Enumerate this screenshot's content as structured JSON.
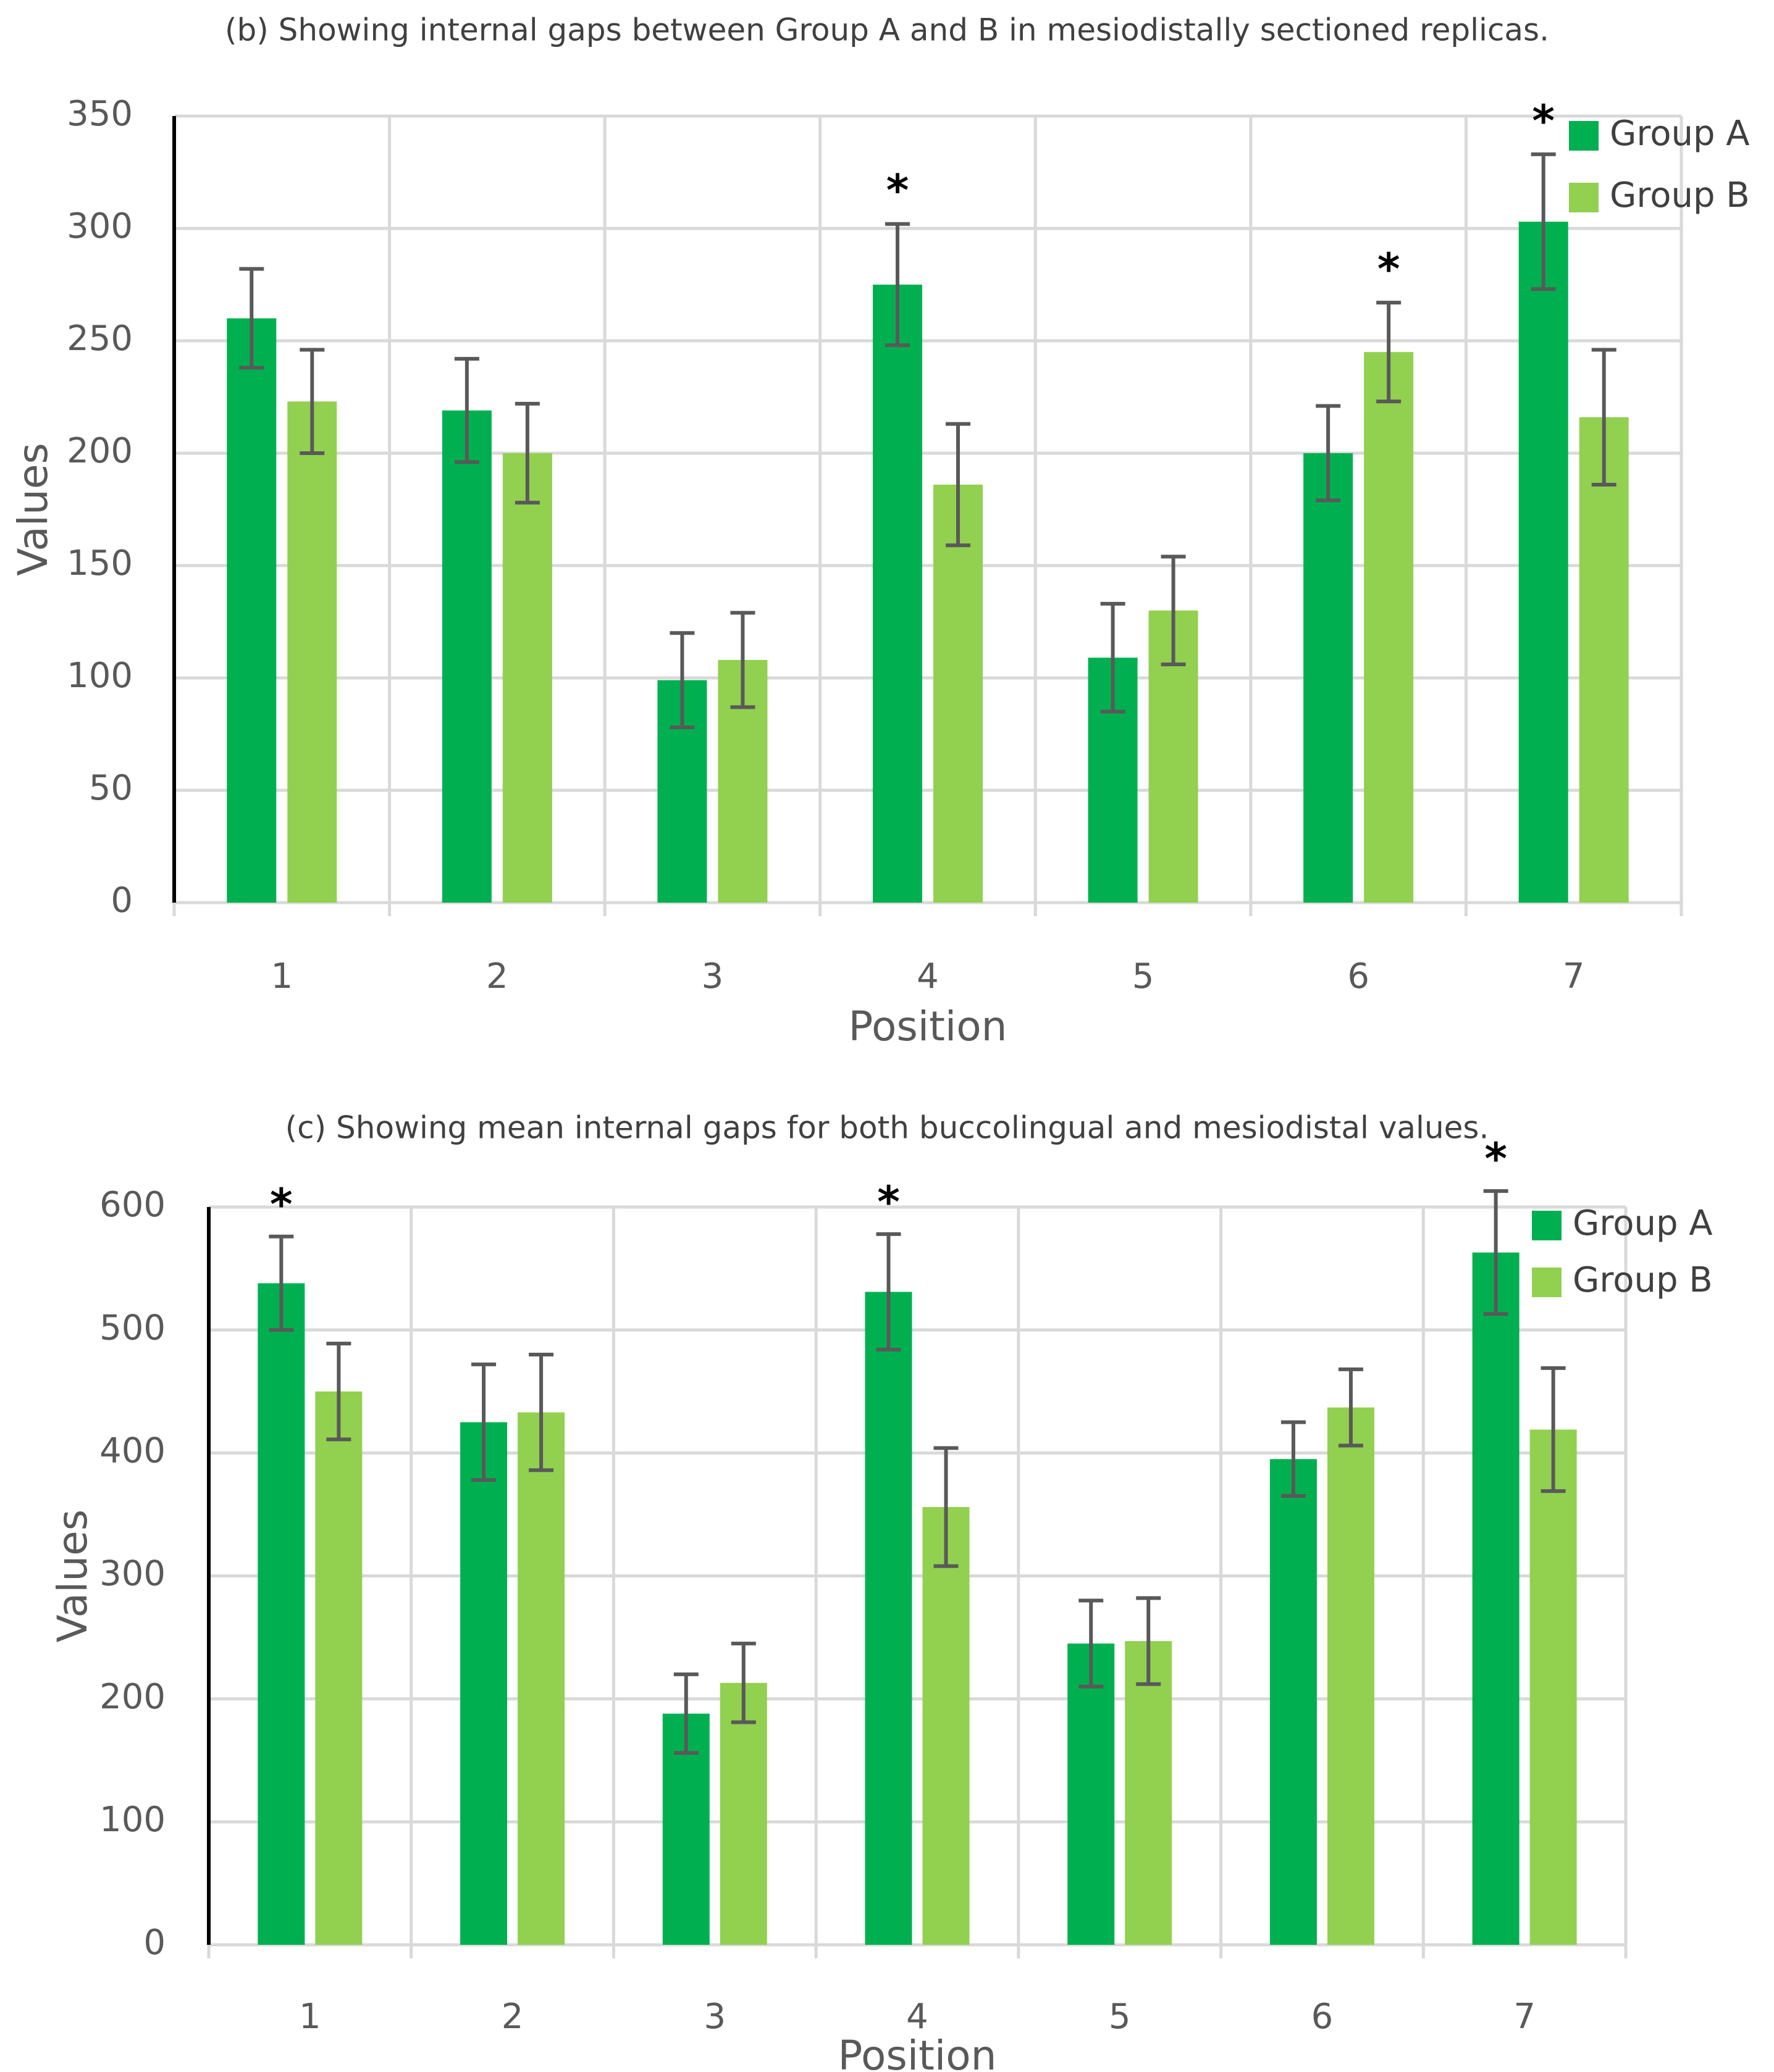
{
  "colors": {
    "group_a": "#00b050",
    "group_b": "#92d050",
    "error_bar": "#595959",
    "grid": "#d9d9d9",
    "axis": "#000000"
  },
  "chart_data": [
    {
      "type": "bar",
      "title": "(b) Showing internal gaps between Group A and B in mesiodistally sectioned replicas.",
      "xlabel": "Position",
      "ylabel": "Values",
      "categories": [
        "1",
        "2",
        "3",
        "4",
        "5",
        "6",
        "7"
      ],
      "ylim": [
        0,
        350
      ],
      "yticks": [
        "0",
        "50",
        "100",
        "150",
        "200",
        "250",
        "300",
        "350"
      ],
      "grid": true,
      "legend": "top-right",
      "series": [
        {
          "name": "Group A",
          "values": [
            260,
            219,
            99,
            275,
            109,
            200,
            303
          ],
          "error": [
            22,
            23,
            21,
            27,
            24,
            21,
            30
          ]
        },
        {
          "name": "Group B",
          "values": [
            223,
            200,
            108,
            186,
            130,
            245,
            216
          ],
          "error": [
            23,
            22,
            21,
            27,
            24,
            22,
            30
          ]
        }
      ],
      "significance": [
        {
          "category": "4",
          "series": "Group A",
          "label": "*"
        },
        {
          "category": "6",
          "series": "Group B",
          "label": "*"
        },
        {
          "category": "7",
          "series": "Group A",
          "label": "*"
        }
      ]
    },
    {
      "type": "bar",
      "title": "(c) Showing mean internal gaps for both buccolingual and mesiodistal values.",
      "xlabel": "Position",
      "ylabel": "Values",
      "categories": [
        "1",
        "2",
        "3",
        "4",
        "5",
        "6",
        "7"
      ],
      "ylim": [
        0,
        600
      ],
      "yticks": [
        "0",
        "100",
        "200",
        "300",
        "400",
        "500",
        "600"
      ],
      "grid": true,
      "legend": "top-right",
      "series": [
        {
          "name": "Group A",
          "values": [
            538,
            425,
            188,
            531,
            245,
            395,
            563
          ],
          "error": [
            38,
            47,
            32,
            47,
            35,
            30,
            50
          ]
        },
        {
          "name": "Group B",
          "values": [
            450,
            433,
            213,
            356,
            247,
            437,
            419
          ],
          "error": [
            39,
            47,
            32,
            48,
            35,
            31,
            50
          ]
        }
      ],
      "significance": [
        {
          "category": "1",
          "series": "Group A",
          "label": "*"
        },
        {
          "category": "4",
          "series": "Group A",
          "label": "*"
        },
        {
          "category": "7",
          "series": "Group A",
          "label": "*"
        }
      ]
    }
  ]
}
